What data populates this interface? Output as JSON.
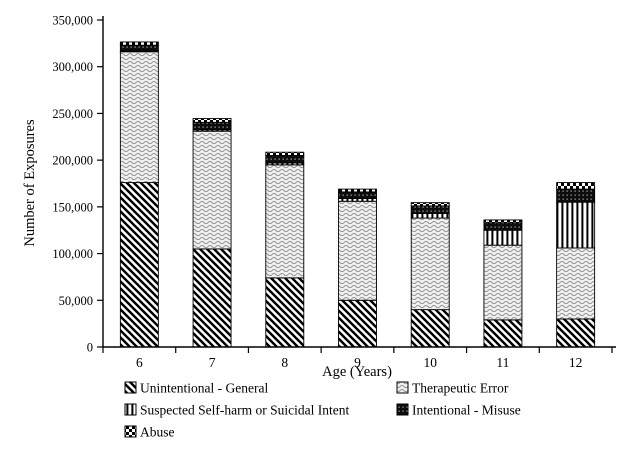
{
  "figure": {
    "background_color": "#ffffff",
    "axis_color": "#000000",
    "text_color": "#000000"
  },
  "chart_data": {
    "type": "bar",
    "stacked": true,
    "title": "",
    "xlabel": "Age (Years)",
    "ylabel": "Number of Exposures",
    "categories": [
      "6",
      "7",
      "8",
      "9",
      "10",
      "11",
      "12"
    ],
    "series": [
      {
        "name": "Unintentional - General",
        "pattern": "diagonal-hatch",
        "values": [
          176000,
          105000,
          74000,
          50000,
          40000,
          29000,
          30000
        ]
      },
      {
        "name": "Therapeutic Error",
        "pattern": "wavy-gray",
        "values": [
          140000,
          126000,
          121000,
          106000,
          98000,
          80000,
          76000
        ]
      },
      {
        "name": "Suspected Self-harm or Suicidal Intent",
        "pattern": "vertical-lines",
        "values": [
          1000,
          1500,
          2000,
          3000,
          5000,
          16000,
          49000
        ]
      },
      {
        "name": "Intentional - Misuse",
        "pattern": "black-dotted",
        "values": [
          6000,
          8000,
          8000,
          7000,
          8000,
          8000,
          14000
        ]
      },
      {
        "name": "Abuse",
        "pattern": "checkerboard",
        "values": [
          3500,
          4000,
          3500,
          3000,
          3500,
          3000,
          7000
        ]
      }
    ],
    "ylim": [
      0,
      350000
    ],
    "ytick_step": 50000,
    "ytick_labels": [
      "0",
      "50,000",
      "100,000",
      "150,000",
      "200,000",
      "250,000",
      "300,000",
      "350,000"
    ],
    "grid": false,
    "legend_position": "bottom",
    "legend_columns": 2
  }
}
